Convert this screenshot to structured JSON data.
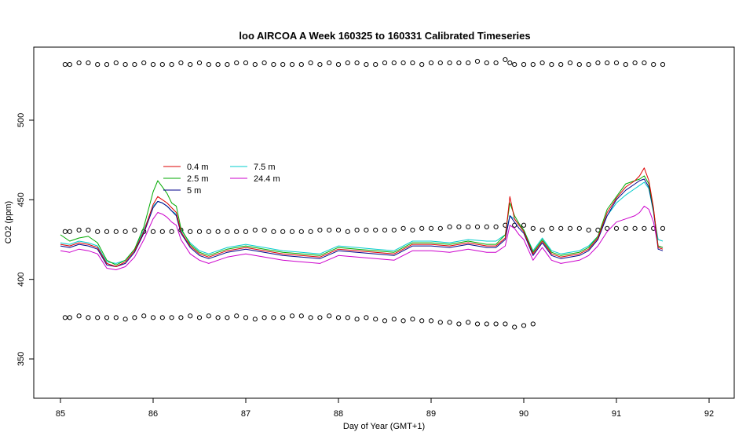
{
  "chart_data": {
    "type": "line",
    "title": "loo AIRCOA A  Week 160325 to 160331  Calibrated Timeseries",
    "xlabel": "Day of Year (GMT+1)",
    "ylabel": "CO2 (ppm)",
    "xlim": [
      85,
      92
    ],
    "ylim": [
      325,
      545
    ],
    "x_ticks": [
      85,
      86,
      87,
      88,
      89,
      90,
      91,
      92
    ],
    "y_ticks": [
      350,
      400,
      450,
      500
    ],
    "grid": false,
    "legend_position": "top-left",
    "series": [
      {
        "name": "0.4 m",
        "color": "#dd0000",
        "x": [
          85.0,
          85.1,
          85.2,
          85.3,
          85.4,
          85.5,
          85.6,
          85.7,
          85.8,
          85.9,
          86.0,
          86.05,
          86.1,
          86.15,
          86.2,
          86.25,
          86.3,
          86.4,
          86.5,
          86.6,
          86.7,
          86.8,
          86.9,
          87.0,
          87.2,
          87.4,
          87.6,
          87.8,
          88.0,
          88.2,
          88.4,
          88.6,
          88.8,
          89.0,
          89.2,
          89.4,
          89.6,
          89.7,
          89.8,
          89.85,
          89.9,
          89.95,
          90.0,
          90.1,
          90.2,
          90.3,
          90.4,
          90.5,
          90.6,
          90.7,
          90.8,
          90.9,
          91.0,
          91.1,
          91.2,
          91.25,
          91.3,
          91.35,
          91.4,
          91.45,
          91.5
        ],
        "y": [
          422,
          421,
          423,
          422,
          420,
          410,
          408,
          411,
          418,
          430,
          447,
          452,
          450,
          448,
          445,
          442,
          430,
          421,
          416,
          414,
          416,
          418,
          419,
          420,
          418,
          416,
          415,
          414,
          419,
          418,
          417,
          416,
          422,
          422,
          421,
          423,
          421,
          421,
          426,
          452,
          438,
          434,
          430,
          416,
          424,
          416,
          414,
          415,
          416,
          419,
          426,
          442,
          451,
          458,
          462,
          465,
          470,
          462,
          445,
          420,
          419
        ]
      },
      {
        "name": "2.5 m",
        "color": "#00aa00",
        "x": [
          85.0,
          85.1,
          85.2,
          85.3,
          85.4,
          85.5,
          85.6,
          85.7,
          85.8,
          85.9,
          86.0,
          86.05,
          86.1,
          86.15,
          86.2,
          86.25,
          86.3,
          86.4,
          86.5,
          86.6,
          86.7,
          86.8,
          86.9,
          87.0,
          87.2,
          87.4,
          87.6,
          87.8,
          88.0,
          88.2,
          88.4,
          88.6,
          88.8,
          89.0,
          89.2,
          89.4,
          89.6,
          89.7,
          89.8,
          89.85,
          89.9,
          89.95,
          90.0,
          90.1,
          90.2,
          90.3,
          90.4,
          90.5,
          90.6,
          90.7,
          90.8,
          90.9,
          91.0,
          91.1,
          91.2,
          91.25,
          91.3,
          91.35,
          91.4,
          91.45,
          91.5
        ],
        "y": [
          428,
          424,
          426,
          427,
          423,
          412,
          409,
          412,
          419,
          433,
          455,
          462,
          458,
          454,
          448,
          446,
          432,
          422,
          417,
          415,
          417,
          419,
          420,
          421,
          419,
          417,
          416,
          415,
          420,
          419,
          418,
          417,
          423,
          423,
          422,
          424,
          422,
          422,
          428,
          448,
          440,
          435,
          431,
          417,
          425,
          417,
          415,
          416,
          417,
          420,
          427,
          444,
          452,
          460,
          462,
          463,
          465,
          460,
          444,
          421,
          420
        ]
      },
      {
        "name": "5 m",
        "color": "#00008b",
        "x": [
          85.0,
          85.1,
          85.2,
          85.3,
          85.4,
          85.5,
          85.6,
          85.7,
          85.8,
          85.9,
          86.0,
          86.05,
          86.1,
          86.15,
          86.2,
          86.25,
          86.3,
          86.4,
          86.5,
          86.6,
          86.7,
          86.8,
          86.9,
          87.0,
          87.2,
          87.4,
          87.6,
          87.8,
          88.0,
          88.2,
          88.4,
          88.6,
          88.8,
          89.0,
          89.2,
          89.4,
          89.6,
          89.7,
          89.8,
          89.85,
          89.9,
          89.95,
          90.0,
          90.1,
          90.2,
          90.3,
          90.4,
          90.5,
          90.6,
          90.7,
          90.8,
          90.9,
          91.0,
          91.1,
          91.2,
          91.25,
          91.3,
          91.35,
          91.4,
          91.45,
          91.5
        ],
        "y": [
          421,
          420,
          422,
          421,
          419,
          409,
          408,
          410,
          417,
          429,
          445,
          449,
          448,
          446,
          443,
          440,
          429,
          420,
          415,
          413,
          415,
          417,
          418,
          419,
          417,
          415,
          414,
          413,
          418,
          417,
          416,
          415,
          421,
          421,
          420,
          422,
          420,
          420,
          425,
          440,
          436,
          432,
          429,
          415,
          423,
          415,
          413,
          414,
          415,
          418,
          425,
          440,
          450,
          456,
          460,
          462,
          463,
          458,
          443,
          419,
          418
        ]
      },
      {
        "name": "7.5 m",
        "color": "#00cccc",
        "x": [
          85.0,
          85.1,
          85.2,
          85.3,
          85.4,
          85.5,
          85.6,
          85.7,
          85.8,
          85.9,
          86.0,
          86.05,
          86.1,
          86.15,
          86.2,
          86.25,
          86.3,
          86.4,
          86.5,
          86.6,
          86.7,
          86.8,
          86.9,
          87.0,
          87.2,
          87.4,
          87.6,
          87.8,
          88.0,
          88.2,
          88.4,
          88.6,
          88.8,
          89.0,
          89.2,
          89.4,
          89.6,
          89.7,
          89.8,
          89.85,
          89.9,
          89.95,
          90.0,
          90.1,
          90.2,
          90.3,
          90.4,
          90.5,
          90.6,
          90.7,
          90.8,
          90.9,
          91.0,
          91.1,
          91.2,
          91.25,
          91.3,
          91.35,
          91.4,
          91.45,
          91.5
        ],
        "y": [
          423,
          422,
          424,
          423,
          421,
          411,
          410,
          412,
          419,
          431,
          446,
          449,
          448,
          446,
          443,
          441,
          431,
          423,
          418,
          416,
          418,
          420,
          421,
          422,
          420,
          418,
          417,
          416,
          421,
          420,
          419,
          418,
          424,
          424,
          423,
          425,
          424,
          424,
          428,
          440,
          438,
          434,
          431,
          418,
          426,
          418,
          416,
          417,
          418,
          421,
          427,
          440,
          448,
          453,
          457,
          459,
          461,
          457,
          442,
          425,
          424
        ]
      },
      {
        "name": "24.4 m",
        "color": "#cc00cc",
        "x": [
          85.0,
          85.1,
          85.2,
          85.3,
          85.4,
          85.5,
          85.6,
          85.7,
          85.8,
          85.9,
          86.0,
          86.05,
          86.1,
          86.15,
          86.2,
          86.25,
          86.3,
          86.4,
          86.5,
          86.6,
          86.7,
          86.8,
          86.9,
          87.0,
          87.2,
          87.4,
          87.6,
          87.8,
          88.0,
          88.2,
          88.4,
          88.6,
          88.8,
          89.0,
          89.2,
          89.4,
          89.6,
          89.7,
          89.8,
          89.85,
          89.9,
          89.95,
          90.0,
          90.1,
          90.2,
          90.3,
          90.4,
          90.5,
          90.6,
          90.7,
          90.8,
          90.9,
          91.0,
          91.1,
          91.2,
          91.25,
          91.3,
          91.35,
          91.4,
          91.45,
          91.5
        ],
        "y": [
          418,
          417,
          419,
          418,
          416,
          407,
          406,
          408,
          414,
          425,
          438,
          442,
          441,
          439,
          436,
          434,
          425,
          416,
          412,
          410,
          412,
          414,
          415,
          416,
          414,
          412,
          411,
          410,
          415,
          414,
          413,
          412,
          418,
          418,
          417,
          419,
          417,
          417,
          421,
          434,
          432,
          428,
          425,
          412,
          420,
          412,
          410,
          411,
          412,
          415,
          421,
          430,
          436,
          438,
          440,
          442,
          446,
          444,
          436,
          421,
          420
        ]
      }
    ],
    "marker_series": [
      {
        "marker": "open-circle",
        "x": [
          85.05,
          85.1,
          85.2,
          85.3,
          85.4,
          85.5,
          85.6,
          85.7,
          85.8,
          85.9,
          86.0,
          86.1,
          86.2,
          86.3,
          86.4,
          86.5,
          86.6,
          86.7,
          86.8,
          86.9,
          87.0,
          87.1,
          87.2,
          87.3,
          87.4,
          87.5,
          87.6,
          87.7,
          87.8,
          87.9,
          88.0,
          88.1,
          88.2,
          88.3,
          88.4,
          88.5,
          88.6,
          88.7,
          88.8,
          88.9,
          89.0,
          89.1,
          89.2,
          89.3,
          89.4,
          89.5,
          89.6,
          89.7,
          89.8,
          89.85,
          89.9,
          90.0,
          90.1,
          90.2,
          90.3,
          90.4,
          90.5,
          90.6,
          90.7,
          90.8,
          90.9,
          91.0,
          91.1,
          91.2,
          91.3,
          91.4,
          91.5
        ],
        "y": [
          535,
          535,
          536,
          536,
          535,
          535,
          536,
          535,
          535,
          536,
          535,
          535,
          535,
          536,
          535,
          536,
          535,
          535,
          535,
          536,
          536,
          535,
          536,
          535,
          535,
          535,
          535,
          536,
          535,
          536,
          535,
          536,
          536,
          535,
          535,
          536,
          536,
          536,
          536,
          535,
          536,
          536,
          536,
          536,
          536,
          537,
          536,
          536,
          538,
          536,
          535,
          535,
          535,
          536,
          535,
          535,
          536,
          535,
          535,
          536,
          536,
          536,
          535,
          536,
          536,
          535,
          535
        ]
      },
      {
        "marker": "open-circle",
        "x": [
          85.05,
          85.1,
          85.2,
          85.3,
          85.4,
          85.5,
          85.6,
          85.7,
          85.8,
          85.9,
          86.0,
          86.1,
          86.2,
          86.3,
          86.4,
          86.5,
          86.6,
          86.7,
          86.8,
          86.9,
          87.0,
          87.1,
          87.2,
          87.3,
          87.4,
          87.5,
          87.6,
          87.7,
          87.8,
          87.9,
          88.0,
          88.1,
          88.2,
          88.3,
          88.4,
          88.5,
          88.6,
          88.7,
          88.8,
          88.9,
          89.0,
          89.1,
          89.2,
          89.3,
          89.4,
          89.5,
          89.6,
          89.7,
          89.8,
          89.9,
          90.0,
          90.1,
          90.2,
          90.3,
          90.4,
          90.5,
          90.6,
          90.7,
          90.8,
          90.9,
          91.0,
          91.1,
          91.2,
          91.3,
          91.4,
          91.5
        ],
        "y": [
          430,
          430,
          431,
          431,
          430,
          430,
          430,
          430,
          431,
          430,
          430,
          430,
          430,
          431,
          430,
          430,
          430,
          430,
          430,
          430,
          430,
          431,
          431,
          430,
          430,
          430,
          430,
          430,
          431,
          431,
          431,
          430,
          431,
          431,
          431,
          431,
          431,
          432,
          431,
          432,
          432,
          432,
          433,
          433,
          433,
          433,
          433,
          433,
          434,
          434,
          434,
          432,
          431,
          432,
          432,
          432,
          432,
          431,
          431,
          432,
          432,
          432,
          432,
          432,
          432,
          432
        ]
      },
      {
        "marker": "open-circle",
        "x": [
          85.05,
          85.1,
          85.2,
          85.3,
          85.4,
          85.5,
          85.6,
          85.7,
          85.8,
          85.9,
          86.0,
          86.1,
          86.2,
          86.3,
          86.4,
          86.5,
          86.6,
          86.7,
          86.8,
          86.9,
          87.0,
          87.1,
          87.2,
          87.3,
          87.4,
          87.5,
          87.6,
          87.7,
          87.8,
          87.9,
          88.0,
          88.1,
          88.2,
          88.3,
          88.4,
          88.5,
          88.6,
          88.7,
          88.8,
          88.9,
          89.0,
          89.1,
          89.2,
          89.3,
          89.4,
          89.5,
          89.6,
          89.7,
          89.8,
          89.9,
          90.0,
          90.1
        ],
        "y": [
          376,
          376,
          377,
          376,
          376,
          376,
          376,
          375,
          376,
          377,
          376,
          376,
          376,
          376,
          377,
          376,
          377,
          376,
          376,
          377,
          376,
          375,
          376,
          376,
          376,
          377,
          377,
          376,
          376,
          377,
          376,
          376,
          375,
          376,
          375,
          374,
          375,
          374,
          375,
          374,
          374,
          373,
          373,
          372,
          373,
          372,
          372,
          372,
          372,
          370,
          371,
          372
        ]
      }
    ]
  }
}
